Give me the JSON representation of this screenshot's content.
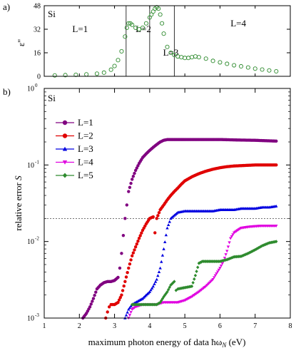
{
  "chart_data": [
    {
      "panel": "a)",
      "type": "scatter",
      "sample": "Si",
      "ylabel": "ε''",
      "xlim": [
        1,
        8
      ],
      "ylim": [
        0,
        48
      ],
      "yticks": [
        "0",
        "16",
        "32",
        "48"
      ],
      "region_lines_x": [
        3.33,
        4.0,
        4.7
      ],
      "regions": [
        {
          "label": "L=1",
          "x": 1.8,
          "y": 30,
          "color": "#800080"
        },
        {
          "label": "L=2",
          "x": 3.6,
          "y": 30,
          "color": "#e00000"
        },
        {
          "label": "L=3",
          "x": 4.38,
          "y": 14,
          "color": "#0000e0"
        },
        {
          "label": "L=4",
          "x": 6.3,
          "y": 34,
          "color": "#e000e0"
        }
      ],
      "series_color": "#2e8b2e",
      "x": [
        1.3,
        1.6,
        1.9,
        2.2,
        2.5,
        2.7,
        2.9,
        3.0,
        3.1,
        3.2,
        3.3,
        3.35,
        3.4,
        3.45,
        3.5,
        3.6,
        3.7,
        3.8,
        3.9,
        4.0,
        4.05,
        4.1,
        4.15,
        4.2,
        4.25,
        4.3,
        4.35,
        4.4,
        4.5,
        4.6,
        4.7,
        4.8,
        4.9,
        5.0,
        5.1,
        5.2,
        5.3,
        5.4,
        5.6,
        5.8,
        6.0,
        6.2,
        6.4,
        6.6,
        6.8,
        7.0,
        7.2,
        7.4,
        7.6
      ],
      "y": [
        0.6,
        0.8,
        1.0,
        1.3,
        1.8,
        2.5,
        4.5,
        7,
        11,
        17,
        27,
        33,
        36,
        36,
        35,
        33,
        32,
        33,
        36,
        40,
        42,
        44,
        46,
        47,
        46,
        42,
        36,
        29,
        20,
        16,
        14.5,
        13.5,
        13,
        12.5,
        12.5,
        13,
        13.5,
        13,
        12,
        10.5,
        9.5,
        8.5,
        7.5,
        6.8,
        6,
        5.2,
        4.6,
        4,
        3.4
      ]
    },
    {
      "panel": "b)",
      "type": "scatter",
      "sample": "Si",
      "xlabel": "maximum photon energy of data ħω",
      "xlabel_sub": "N",
      "xlabel_unit": " (eV)",
      "ylabel": "relative error",
      "ylabel_var": "S",
      "xlim": [
        1,
        8
      ],
      "xticks": [
        "1",
        "2",
        "3",
        "4",
        "5",
        "6",
        "7",
        "8"
      ],
      "ylim_log": [
        -3,
        0
      ],
      "yticks_base": "10",
      "yticks_exp": [
        "-3",
        "-2",
        "-1",
        "0"
      ],
      "hline_y": 0.02,
      "legend_loc": "upper-left",
      "series": [
        {
          "name": "L=1",
          "marker": "circle",
          "color": "#800080",
          "x": [
            2.1,
            2.2,
            2.3,
            2.4,
            2.5,
            2.6,
            2.7,
            2.8,
            2.9,
            3.0,
            3.1,
            3.15,
            3.2,
            3.25,
            3.3,
            3.35,
            3.4,
            3.5,
            3.6,
            3.7,
            3.8,
            3.9,
            4.0,
            4.1,
            4.2,
            4.3,
            4.4,
            4.5,
            4.7,
            5.0,
            5.5,
            6.0,
            6.5,
            7.0,
            7.6
          ],
          "y": [
            0.001,
            0.00115,
            0.0014,
            0.0018,
            0.0024,
            0.0027,
            0.0029,
            0.003,
            0.003,
            0.0031,
            0.0034,
            0.0045,
            0.007,
            0.012,
            0.02,
            0.03,
            0.045,
            0.065,
            0.085,
            0.105,
            0.125,
            0.14,
            0.155,
            0.17,
            0.185,
            0.2,
            0.21,
            0.215,
            0.215,
            0.215,
            0.215,
            0.215,
            0.212,
            0.21,
            0.205
          ]
        },
        {
          "name": "L=2",
          "marker": "circle",
          "color": "#e00000",
          "x": [
            2.75,
            2.8,
            2.85,
            2.9,
            3.0,
            3.1,
            3.2,
            3.3,
            3.4,
            3.5,
            3.6,
            3.7,
            3.8,
            3.9,
            4.0,
            4.1,
            4.15,
            4.2,
            4.3,
            4.4,
            4.5,
            4.6,
            4.7,
            4.8,
            4.9,
            5.0,
            5.2,
            5.4,
            5.6,
            5.8,
            6.0,
            6.2,
            6.4,
            6.6,
            6.8,
            7.0,
            7.2,
            7.4,
            7.6
          ],
          "y": [
            0.001,
            0.0012,
            0.0014,
            0.0015,
            0.0015,
            0.0016,
            0.002,
            0.003,
            0.0045,
            0.0065,
            0.0085,
            0.011,
            0.014,
            0.017,
            0.02,
            0.021,
            0.013,
            0.02,
            0.026,
            0.03,
            0.035,
            0.04,
            0.045,
            0.05,
            0.056,
            0.062,
            0.07,
            0.077,
            0.083,
            0.088,
            0.092,
            0.095,
            0.097,
            0.098,
            0.099,
            0.1,
            0.1,
            0.1,
            0.1
          ]
        },
        {
          "name": "L=3",
          "marker": "triangle-up",
          "color": "#0000e0",
          "x": [
            3.3,
            3.4,
            3.5,
            3.6,
            3.7,
            3.8,
            3.9,
            4.0,
            4.1,
            4.2,
            4.3,
            4.4,
            4.5,
            4.6,
            4.7,
            4.8,
            5.0,
            5.2,
            5.4,
            5.6,
            5.8,
            6.0,
            6.2,
            6.4,
            6.6,
            6.8,
            7.0,
            7.2,
            7.4,
            7.6
          ],
          "y": [
            0.001,
            0.0013,
            0.0015,
            0.0016,
            0.0017,
            0.0018,
            0.002,
            0.0022,
            0.0026,
            0.0032,
            0.0045,
            0.008,
            0.015,
            0.02,
            0.022,
            0.024,
            0.025,
            0.025,
            0.025,
            0.025,
            0.025,
            0.026,
            0.026,
            0.026,
            0.027,
            0.027,
            0.027,
            0.028,
            0.028,
            0.029
          ]
        },
        {
          "name": "L=4",
          "marker": "triangle-down",
          "color": "#e000e0",
          "x": [
            3.4,
            3.5,
            3.6,
            3.8,
            4.0,
            4.2,
            4.4,
            4.6,
            4.8,
            5.0,
            5.2,
            5.4,
            5.6,
            5.8,
            5.9,
            6.0,
            6.1,
            6.2,
            6.3,
            6.4,
            6.5,
            6.6,
            6.8,
            7.0,
            7.2,
            7.4,
            7.6
          ],
          "y": [
            0.001,
            0.0013,
            0.0014,
            0.0015,
            0.0015,
            0.0015,
            0.0016,
            0.0016,
            0.0016,
            0.0017,
            0.0019,
            0.0022,
            0.0026,
            0.0032,
            0.0038,
            0.0045,
            0.0055,
            0.0075,
            0.011,
            0.013,
            0.014,
            0.015,
            0.0155,
            0.0158,
            0.016,
            0.016,
            0.016
          ]
        },
        {
          "name": "L=5",
          "marker": "diamond",
          "color": "#2e8b2e",
          "x": [
            3.5,
            3.6,
            3.8,
            4.0,
            4.2,
            4.3,
            4.4,
            4.5,
            4.6,
            4.7,
            4.75,
            4.8,
            5.0,
            5.2,
            5.3,
            5.4,
            5.5,
            5.6,
            5.8,
            6.0,
            6.2,
            6.4,
            6.6,
            6.8,
            7.0,
            7.2,
            7.4,
            7.6
          ],
          "y": [
            0.0015,
            0.0015,
            0.0015,
            0.0015,
            0.0015,
            0.0016,
            0.0019,
            0.0022,
            0.0027,
            0.003,
            0.0023,
            0.0024,
            0.0025,
            0.0026,
            0.0036,
            0.0052,
            0.0055,
            0.0055,
            0.0055,
            0.0055,
            0.0058,
            0.0063,
            0.0064,
            0.007,
            0.0078,
            0.0088,
            0.0096,
            0.01
          ]
        }
      ]
    }
  ]
}
